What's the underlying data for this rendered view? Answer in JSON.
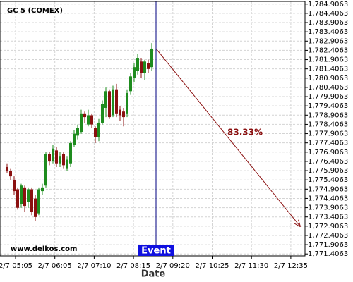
{
  "chart_data": {
    "type": "candlestick",
    "title": "GC 5 (COMEX)",
    "x_label": "Date",
    "watermark": "www.delkos.com",
    "x_labels": [
      "2/7 05:05",
      "2/7 06:05",
      "2/7 07:10",
      "2/7 08:15",
      "2/7 09:20",
      "2/7 10:25",
      "2/7 11:30",
      "2/7 12:35"
    ],
    "open": [
      1776.1,
      1775.9,
      1775.4,
      1774.9,
      1774.1,
      1775.0,
      1774.2,
      1774.9,
      1774.4,
      1773.6,
      1774.8,
      1775.1,
      1776.8,
      1776.4,
      1777.0,
      1776.3,
      1776.8,
      1776.0,
      1776.3,
      1777.3,
      1777.8,
      1778.0,
      1779.0,
      1778.4,
      1778.9,
      1778.2,
      1777.7,
      1778.5,
      1779.3,
      1780.2,
      1778.9,
      1780.3,
      1779.2,
      1779.1,
      1779.0,
      1780.2,
      1780.9,
      1781.3,
      1781.8,
      1781.2,
      1781.7,
      1781.5
    ],
    "high": [
      1776.3,
      1776.0,
      1775.6,
      1775.0,
      1775.2,
      1775.1,
      1775.0,
      1775.0,
      1774.6,
      1775.0,
      1775.2,
      1776.9,
      1776.9,
      1777.3,
      1777.2,
      1776.9,
      1776.9,
      1776.7,
      1777.5,
      1778.1,
      1778.4,
      1779.2,
      1779.1,
      1779.2,
      1779.0,
      1778.3,
      1778.7,
      1779.7,
      1780.4,
      1780.3,
      1780.5,
      1780.6,
      1779.4,
      1779.3,
      1780.3,
      1781.2,
      1781.7,
      1782.2,
      1782.0,
      1781.9,
      1781.9,
      1782.8
    ],
    "low": [
      1775.8,
      1775.4,
      1774.6,
      1773.8,
      1773.9,
      1773.7,
      1773.9,
      1773.5,
      1773.2,
      1773.5,
      1774.6,
      1775.0,
      1776.2,
      1776.3,
      1776.1,
      1776.1,
      1776.0,
      1775.9,
      1776.1,
      1777.2,
      1777.6,
      1777.9,
      1778.5,
      1778.3,
      1778.2,
      1777.4,
      1777.5,
      1778.4,
      1778.8,
      1778.7,
      1778.8,
      1778.8,
      1778.6,
      1778.3,
      1778.8,
      1780.0,
      1780.7,
      1781.1,
      1780.9,
      1780.8,
      1781.2,
      1781.3
    ],
    "close": [
      1775.9,
      1775.6,
      1774.8,
      1773.9,
      1775.1,
      1774.0,
      1774.9,
      1773.7,
      1773.4,
      1774.9,
      1775.0,
      1776.8,
      1776.4,
      1777.1,
      1776.3,
      1776.7,
      1776.2,
      1776.5,
      1777.4,
      1777.9,
      1778.2,
      1779.0,
      1778.8,
      1778.9,
      1778.4,
      1777.7,
      1778.5,
      1779.5,
      1780.2,
      1778.8,
      1780.3,
      1779.0,
      1778.9,
      1778.8,
      1780.1,
      1781.0,
      1781.5,
      1782.0,
      1781.2,
      1781.8,
      1781.4,
      1782.5
    ],
    "up_color": "#1e8c1e",
    "down_color": "#8b1010",
    "ylim": [
      1771.3,
      1785.05
    ],
    "yticks": [
      {
        "value": 1771.4063,
        "label": "1,771.4063"
      },
      {
        "value": 1771.9063,
        "label": "1,771.9063"
      },
      {
        "value": 1772.4063,
        "label": "1,772.4063"
      },
      {
        "value": 1772.9063,
        "label": "1,772.9063"
      },
      {
        "value": 1773.4063,
        "label": "1,773.4063"
      },
      {
        "value": 1773.9063,
        "label": "1,773.9063"
      },
      {
        "value": 1774.4063,
        "label": "1,774.4063"
      },
      {
        "value": 1774.9063,
        "label": "1,774.9063"
      },
      {
        "value": 1775.4063,
        "label": "1,775.4063"
      },
      {
        "value": 1775.9063,
        "label": "1,775.9063"
      },
      {
        "value": 1776.4063,
        "label": "1,776.4063"
      },
      {
        "value": 1776.9063,
        "label": "1,776.9063"
      },
      {
        "value": 1777.4063,
        "label": "1,777.4063"
      },
      {
        "value": 1777.9063,
        "label": "1,777.9063"
      },
      {
        "value": 1778.4063,
        "label": "1,778.4063"
      },
      {
        "value": 1778.9063,
        "label": "1,778.9063"
      },
      {
        "value": 1779.4063,
        "label": "1,779.4063"
      },
      {
        "value": 1779.9063,
        "label": "1,779.9063"
      },
      {
        "value": 1780.4063,
        "label": "1,780.4063"
      },
      {
        "value": 1780.9063,
        "label": "1,780.9063"
      },
      {
        "value": 1781.4063,
        "label": "1,781.4063"
      },
      {
        "value": 1781.9063,
        "label": "1,781.9063"
      },
      {
        "value": 1782.4063,
        "label": "1,782.4063"
      },
      {
        "value": 1782.9063,
        "label": "1,782.9063"
      },
      {
        "value": 1783.4063,
        "label": "1,783.4063"
      },
      {
        "value": 1783.9063,
        "label": "1,783.9063"
      },
      {
        "value": 1784.4063,
        "label": "1,784.4063"
      },
      {
        "value": 1784.9063,
        "label": "1,784.9063"
      }
    ],
    "grid": true,
    "event": {
      "label": "Event",
      "color": "#1010e0"
    },
    "projection": {
      "label": "83.33%",
      "target": 1772.9,
      "color": "#8b1010"
    }
  }
}
